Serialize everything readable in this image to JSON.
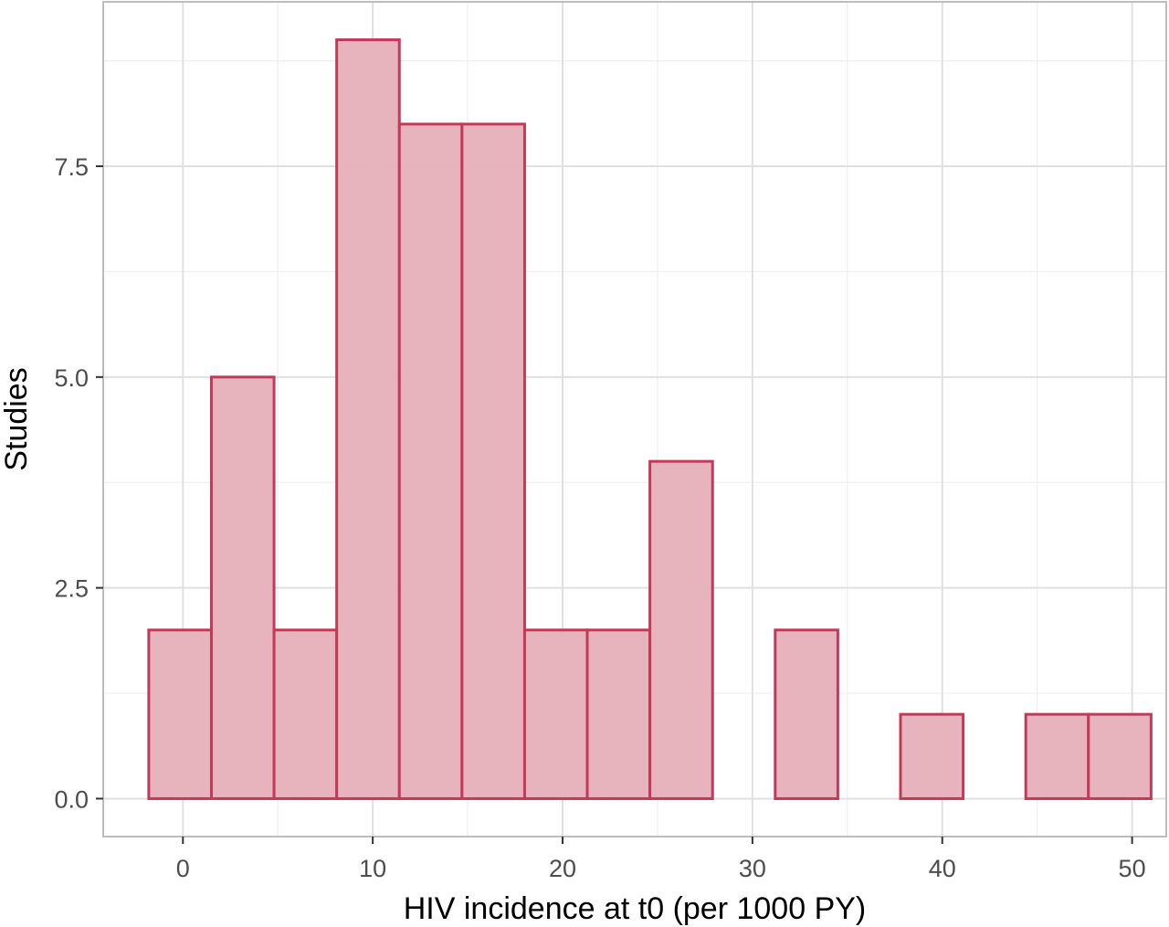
{
  "chart_data": {
    "type": "histogram",
    "xlabel": "HIV incidence at t0 (per 1000 PY)",
    "ylabel": "Studies",
    "xlim": [
      -4.2,
      51.8
    ],
    "ylim": [
      -0.45,
      9.45
    ],
    "x_ticks": [
      0,
      10,
      20,
      30,
      40,
      50
    ],
    "y_ticks": [
      0,
      2.5,
      5,
      7.5
    ],
    "x_tick_labels": [
      "0",
      "10",
      "20",
      "30",
      "40",
      "50"
    ],
    "y_tick_labels": [
      "0.0",
      "2.5",
      "5.0",
      "7.5"
    ],
    "bins": [
      {
        "x0": -1.8,
        "x1": 1.5,
        "count": 2
      },
      {
        "x0": 1.5,
        "x1": 4.8,
        "count": 5
      },
      {
        "x0": 4.8,
        "x1": 8.1,
        "count": 2
      },
      {
        "x0": 8.1,
        "x1": 11.4,
        "count": 9
      },
      {
        "x0": 11.4,
        "x1": 14.7,
        "count": 8
      },
      {
        "x0": 14.7,
        "x1": 18.0,
        "count": 8
      },
      {
        "x0": 18.0,
        "x1": 21.3,
        "count": 2
      },
      {
        "x0": 21.3,
        "x1": 24.6,
        "count": 2
      },
      {
        "x0": 24.6,
        "x1": 27.9,
        "count": 4
      },
      {
        "x0": 27.9,
        "x1": 31.2,
        "count": 0
      },
      {
        "x0": 31.2,
        "x1": 34.5,
        "count": 2
      },
      {
        "x0": 34.5,
        "x1": 37.8,
        "count": 0
      },
      {
        "x0": 37.8,
        "x1": 41.1,
        "count": 1
      },
      {
        "x0": 41.1,
        "x1": 44.4,
        "count": 0
      },
      {
        "x0": 44.4,
        "x1": 47.7,
        "count": 1
      },
      {
        "x0": 47.7,
        "x1": 51.0,
        "count": 1
      }
    ],
    "grid": true,
    "colors": {
      "bar_fill": "#e6b0bb",
      "bar_outline": "#c23a5a",
      "grid_major": "#e0e0e0",
      "grid_minor": "#efefef",
      "panel_border": "#bdbdbd"
    }
  }
}
